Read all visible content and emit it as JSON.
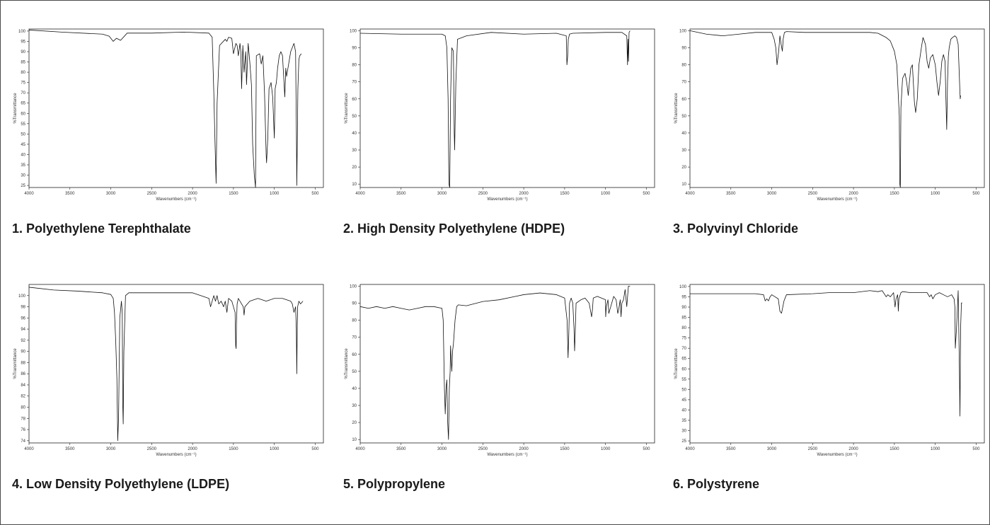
{
  "figure": {
    "x_axis_label": "Wavenumbers (cm⁻¹)",
    "y_axis_label": "%Transmittance"
  },
  "chart_data": [
    {
      "type": "line",
      "caption": "1. Polyethylene Terephthalate",
      "xlabel": "Wavenumbers (cm⁻¹)",
      "ylabel": "%Transmittance",
      "xlim": [
        4000,
        400
      ],
      "ylim": [
        24,
        101
      ],
      "xticks": [
        4000,
        3500,
        3000,
        2500,
        2000,
        1500,
        1000,
        500
      ],
      "yticks": [
        25,
        30,
        35,
        40,
        45,
        50,
        55,
        60,
        65,
        70,
        75,
        80,
        85,
        90,
        95,
        100
      ],
      "series": [
        {
          "x": [
            4000,
            3600,
            3100,
            3020,
            2970,
            2930,
            2880,
            2800,
            2500,
            2100,
            1800,
            1760,
            1740,
            1725,
            1712,
            1700,
            1670,
            1600,
            1580,
            1560,
            1520,
            1500,
            1470,
            1455,
            1440,
            1420,
            1410,
            1400,
            1385,
            1370,
            1350,
            1340,
            1320,
            1300,
            1280,
            1265,
            1245,
            1230,
            1220,
            1180,
            1160,
            1140,
            1120,
            1100,
            1095,
            1080,
            1065,
            1040,
            1020,
            1000,
            990,
            975,
            960,
            940,
            920,
            900,
            872,
            860,
            850,
            800,
            760,
            740,
            730,
            725,
            712,
            700,
            690,
            670
          ],
          "y": [
            100.5,
            99.5,
            98.5,
            97.5,
            95,
            96.5,
            95.5,
            99,
            99,
            99.5,
            99,
            97,
            70,
            45,
            26,
            65,
            93,
            96,
            95,
            97,
            96.5,
            89,
            94,
            93,
            88,
            94,
            90,
            72,
            93,
            80,
            90,
            74,
            94,
            85,
            74,
            45,
            30,
            24,
            88,
            89,
            84,
            88,
            70,
            40,
            36,
            48,
            72,
            75,
            68,
            48,
            72,
            75,
            82,
            88,
            90,
            88,
            68,
            82,
            78,
            90,
            94,
            90,
            50,
            25,
            72,
            86,
            88,
            89
          ]
        }
      ]
    },
    {
      "type": "line",
      "caption": "2. High Density Polyethylene (HDPE)",
      "xlabel": "Wavenumbers (cm⁻¹)",
      "ylabel": "%Transmittance",
      "xlim": [
        4000,
        400
      ],
      "ylim": [
        8,
        101
      ],
      "xticks": [
        4000,
        3500,
        3000,
        2500,
        2000,
        1500,
        1000,
        500
      ],
      "yticks": [
        10,
        20,
        30,
        40,
        50,
        60,
        70,
        80,
        90,
        100
      ],
      "series": [
        {
          "x": [
            4000,
            3500,
            3000,
            2960,
            2940,
            2925,
            2915,
            2905,
            2895,
            2880,
            2860,
            2850,
            2845,
            2830,
            2810,
            2700,
            2400,
            2000,
            1600,
            1480,
            1472,
            1463,
            1455,
            1440,
            1400,
            1000,
            800,
            740,
            731,
            725,
            719,
            712,
            700
          ],
          "y": [
            98.5,
            98,
            98,
            97,
            90,
            60,
            10,
            8,
            60,
            90,
            88,
            40,
            30,
            70,
            95,
            97,
            99,
            98,
            98.5,
            97,
            80,
            85,
            95,
            98,
            98.5,
            99,
            99,
            97,
            80,
            95,
            82,
            99,
            100
          ]
        }
      ]
    },
    {
      "type": "line",
      "caption": "3. Polyvinyl Chloride",
      "xlabel": "Wavenumbers (cm⁻¹)",
      "ylabel": "%Transmittance",
      "xlim": [
        4000,
        400
      ],
      "ylim": [
        8,
        101
      ],
      "xticks": [
        4000,
        3500,
        3000,
        2500,
        2000,
        1500,
        1000,
        500
      ],
      "yticks": [
        10,
        20,
        30,
        40,
        50,
        60,
        70,
        80,
        90,
        100
      ],
      "series": [
        {
          "x": [
            4000,
            3800,
            3600,
            3400,
            3200,
            3000,
            2970,
            2950,
            2935,
            2915,
            2900,
            2885,
            2870,
            2860,
            2845,
            2820,
            2600,
            2000,
            1800,
            1700,
            1600,
            1550,
            1500,
            1470,
            1440,
            1434,
            1427,
            1420,
            1400,
            1370,
            1350,
            1330,
            1320,
            1300,
            1280,
            1255,
            1240,
            1220,
            1200,
            1170,
            1150,
            1120,
            1100,
            1080,
            1060,
            1030,
            1000,
            980,
            960,
            940,
            920,
            900,
            880,
            870,
            860,
            850,
            840,
            830,
            810,
            790,
            760,
            740,
            720,
            700,
            695,
            690
          ],
          "y": [
            100,
            98,
            97,
            98,
            99,
            99,
            95,
            90,
            80,
            88,
            97,
            92,
            88,
            95,
            99,
            99.5,
            99,
            99,
            99,
            98.5,
            96,
            94,
            88,
            80,
            50,
            10,
            8,
            55,
            72,
            75,
            70,
            62,
            68,
            78,
            80,
            58,
            52,
            60,
            80,
            90,
            96,
            92,
            82,
            78,
            84,
            86,
            80,
            70,
            62,
            70,
            82,
            86,
            82,
            60,
            42,
            70,
            85,
            90,
            95,
            96,
            97,
            96,
            92,
            66,
            60,
            62
          ]
        }
      ]
    },
    {
      "type": "line",
      "caption": "4. Low Density Polyethylene (LDPE)",
      "xlabel": "Wavenumbers (cm⁻¹)",
      "ylabel": "%Transmittance",
      "xlim": [
        4000,
        400
      ],
      "ylim": [
        73.6,
        102
      ],
      "xticks": [
        4000,
        3500,
        3000,
        2500,
        2000,
        1500,
        1000,
        500
      ],
      "yticks": [
        74,
        76,
        78,
        80,
        82,
        84,
        86,
        88,
        90,
        92,
        94,
        96,
        98,
        100
      ],
      "series": [
        {
          "x": [
            4000,
            3700,
            3400,
            3100,
            3000,
            2970,
            2955,
            2940,
            2925,
            2915,
            2905,
            2890,
            2870,
            2860,
            2853,
            2848,
            2840,
            2820,
            2780,
            2500,
            2200,
            2000,
            1900,
            1800,
            1780,
            1760,
            1740,
            1720,
            1700,
            1680,
            1650,
            1620,
            1600,
            1580,
            1560,
            1520,
            1500,
            1480,
            1472,
            1467,
            1463,
            1455,
            1440,
            1420,
            1380,
            1370,
            1360,
            1300,
            1200,
            1100,
            1000,
            900,
            800,
            780,
            760,
            740,
            731,
            725,
            720,
            715,
            700,
            680,
            650
          ],
          "y": [
            101.5,
            101,
            100.8,
            100.5,
            100.2,
            99.5,
            97,
            92,
            85,
            74,
            78,
            96,
            99,
            97,
            80,
            77,
            90,
            100,
            100.5,
            100.5,
            100.5,
            100.5,
            100,
            99.5,
            98,
            99,
            100,
            99,
            100,
            98.5,
            99,
            98,
            99,
            97,
            99.5,
            99,
            98,
            97,
            91,
            90.5,
            95,
            98.5,
            99.5,
            99,
            98,
            96.5,
            98,
            99,
            99.5,
            99,
            99.5,
            99.5,
            99,
            98.5,
            97,
            98,
            94,
            86,
            94,
            98,
            99,
            98.5,
            99
          ]
        }
      ]
    },
    {
      "type": "line",
      "caption": "5. Polypropylene",
      "xlabel": "Wavenumbers (cm⁻¹)",
      "ylabel": "%Transmittance",
      "xlim": [
        4000,
        400
      ],
      "ylim": [
        8,
        101
      ],
      "xticks": [
        4000,
        3500,
        3000,
        2500,
        2000,
        1500,
        1000,
        500
      ],
      "yticks": [
        10,
        20,
        30,
        40,
        50,
        60,
        70,
        80,
        90,
        100
      ],
      "series": [
        {
          "x": [
            4000,
            3900,
            3800,
            3700,
            3600,
            3500,
            3400,
            3300,
            3200,
            3100,
            3000,
            2985,
            2970,
            2960,
            2950,
            2940,
            2930,
            2920,
            2910,
            2900,
            2895,
            2880,
            2870,
            2860,
            2840,
            2820,
            2800,
            2700,
            2500,
            2300,
            2100,
            2000,
            1800,
            1600,
            1500,
            1470,
            1458,
            1450,
            1440,
            1420,
            1400,
            1385,
            1378,
            1372,
            1360,
            1300,
            1250,
            1200,
            1170,
            1160,
            1150,
            1100,
            1000,
            998,
            990,
            970,
            960,
            900,
            870,
            850,
            840,
            820,
            810,
            800,
            780,
            760,
            740,
            720,
            700
          ],
          "y": [
            88,
            87,
            88,
            87,
            88,
            87,
            86,
            87,
            88,
            88,
            87,
            80,
            40,
            25,
            40,
            45,
            20,
            10,
            40,
            50,
            65,
            50,
            62,
            66,
            80,
            88,
            89,
            88.5,
            91,
            92,
            94,
            95,
            96,
            95,
            93,
            80,
            58,
            70,
            90,
            93,
            90,
            75,
            62,
            70,
            90,
            92,
            93,
            90,
            82,
            86,
            93,
            94,
            92,
            82,
            88,
            92,
            84,
            94,
            92,
            84,
            86,
            92,
            82,
            90,
            92,
            98,
            88,
            100,
            100
          ]
        }
      ]
    },
    {
      "type": "line",
      "caption": "6. Polystyrene",
      "xlabel": "Wavenumbers (cm⁻¹)",
      "ylabel": "%Transmittance",
      "xlim": [
        4000,
        400
      ],
      "ylim": [
        24,
        101
      ],
      "xticks": [
        4000,
        3500,
        3000,
        2500,
        2000,
        1500,
        1000,
        500
      ],
      "yticks": [
        25,
        30,
        35,
        40,
        45,
        50,
        55,
        60,
        65,
        70,
        75,
        80,
        85,
        90,
        95,
        100
      ],
      "series": [
        {
          "x": [
            4000,
            3500,
            3200,
            3100,
            3080,
            3060,
            3040,
            3020,
            3000,
            2960,
            2920,
            2900,
            2880,
            2850,
            2820,
            2500,
            2300,
            2000,
            1800,
            1700,
            1650,
            1600,
            1580,
            1550,
            1510,
            1492,
            1480,
            1460,
            1452,
            1445,
            1420,
            1400,
            1300,
            1200,
            1100,
            1070,
            1050,
            1030,
            1000,
            950,
            900,
            850,
            800,
            770,
            760,
            755,
            740,
            720,
            705,
            698,
            690,
            680,
            670
          ],
          "y": [
            96.5,
            96.5,
            96.5,
            96,
            93,
            94,
            93,
            95,
            96,
            95,
            94,
            88,
            87,
            93,
            96,
            96.5,
            97,
            97,
            98,
            97.5,
            98,
            95,
            96,
            95,
            97,
            90,
            94,
            96,
            88,
            94,
            97,
            97.5,
            97,
            97,
            97,
            95,
            96,
            94,
            96,
            97,
            96,
            95,
            96,
            94,
            90,
            70,
            80,
            98,
            60,
            37,
            80,
            92,
            92
          ]
        }
      ]
    }
  ]
}
